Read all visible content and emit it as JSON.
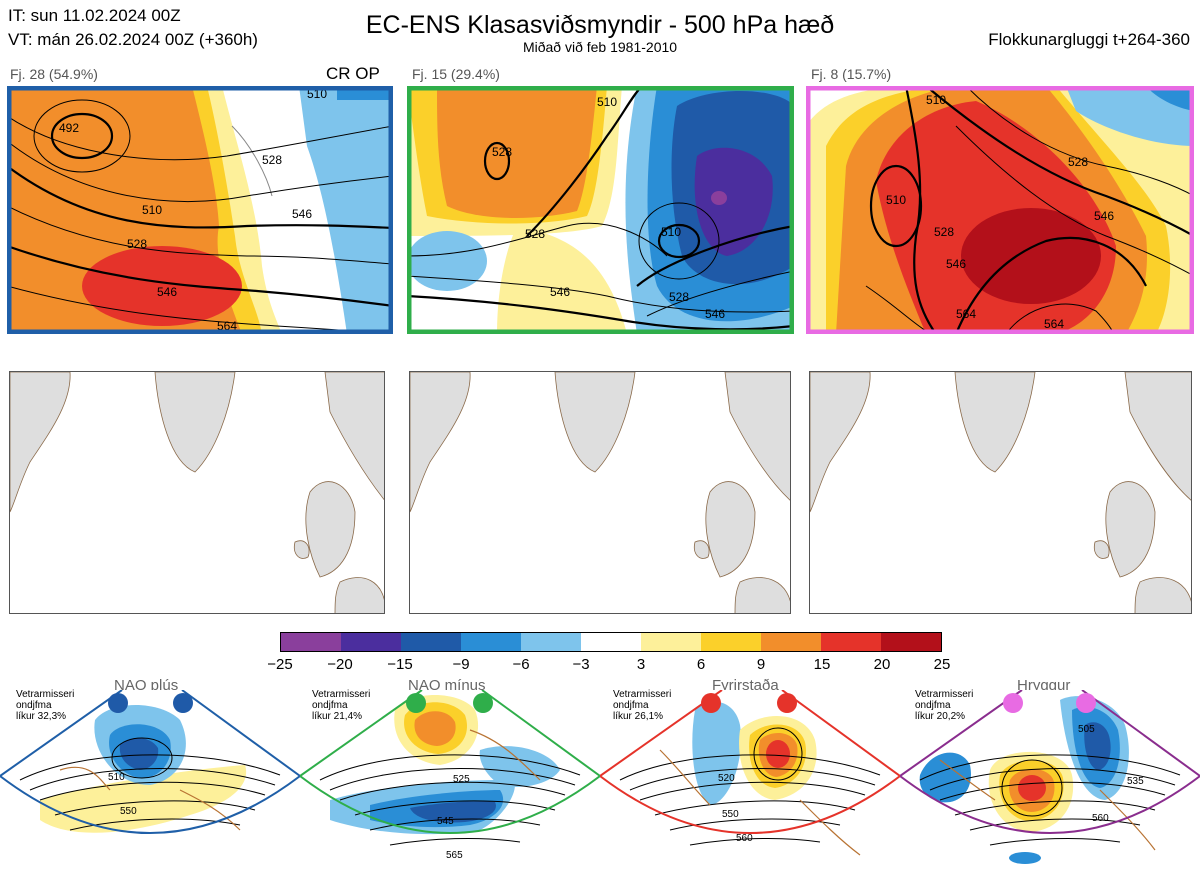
{
  "header": {
    "it_line": "IT: sun 11.02.2024 00Z",
    "vt_line": "VT: mán 26.02.2024 00Z  (+360h)",
    "title": "EC-ENS Klasasviðsmyndir - 500 hPa hæð",
    "subtitle": "Miðað við feb 1981-2010",
    "window": "Flokkunargluggi t+264-360"
  },
  "clusters": [
    {
      "label": "Fj. 28 (54.9%)",
      "tag": "CR OP",
      "border": "#1f5fa8",
      "contours": [
        "492",
        "510",
        "510",
        "528",
        "528",
        "546",
        "546",
        "564"
      ]
    },
    {
      "label": "Fj. 15 (29.4%)",
      "tag": "",
      "border": "#2fae4a",
      "contours": [
        "528",
        "510",
        "510",
        "528",
        "546",
        "528",
        "546"
      ]
    },
    {
      "label": "Fj. 8 (15.7%)",
      "tag": "",
      "border": "#e86be3",
      "contours": [
        "510",
        "528",
        "510",
        "528",
        "546",
        "546",
        "564",
        "564"
      ]
    }
  ],
  "colorbar": {
    "ticks": [
      "−25",
      "−20",
      "−15",
      "−9",
      "−6",
      "−3",
      "3",
      "6",
      "9",
      "15",
      "20",
      "25"
    ],
    "colors": [
      "#8a3f9c",
      "#4b2e9e",
      "#1f5aa8",
      "#2a8ed6",
      "#7ec4ec",
      "#ffffff",
      "#fdf09a",
      "#fbd02a",
      "#f28e2b",
      "#e5332a",
      "#b3101a"
    ]
  },
  "regimes": [
    {
      "name": "NAO plús",
      "info": "Vetrarmisseri\nondjfma\nlíkur 32,3%",
      "marker": "#1f5aa8",
      "border": "#1f5fa8",
      "contours": [
        "510",
        "550"
      ]
    },
    {
      "name": "NAO mínus",
      "info": "Vetrarmisseri\nondjfma\nlíkur 21,4%",
      "marker": "#2fae4a",
      "border": "#2fae4a",
      "contours": [
        "525",
        "545",
        "565"
      ]
    },
    {
      "name": "Fyrirstaða",
      "info": "Vetrarmisseri\nondjfma\nlíkur 26,1%",
      "marker": "#e5332a",
      "border": "#e5332a",
      "contours": [
        "520",
        "550",
        "560"
      ]
    },
    {
      "name": "Hryggur",
      "info": "Vetrarmisseri\nondjfma\nlíkur 20,2%",
      "marker": "#e86be3",
      "border": "#8a2d8e",
      "contours": [
        "505",
        "535",
        "560"
      ]
    }
  ]
}
